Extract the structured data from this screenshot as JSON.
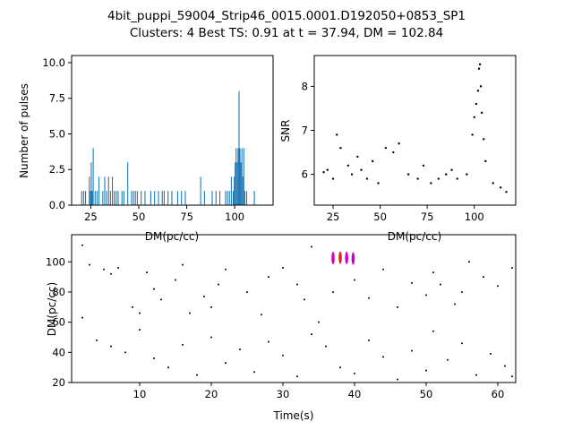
{
  "figure": {
    "title_line1": "4bit_puppi_59004_Strip46_0015.0001.D192050+0853_SP1",
    "title_line2": "Clusters: 4 Best TS: 0.91 at t = 37.94, DM = 102.84"
  },
  "colors": {
    "histogram_bars": "#1f77b4",
    "points": "#000000",
    "cluster_red": "#d62728",
    "cluster_magenta": "#cc00cc"
  },
  "chart_data": [
    {
      "type": "bar",
      "name": "dm-histogram",
      "xlabel": "DM(pc/cc)",
      "ylabel": "Number of pulses",
      "xlim": [
        15,
        120
      ],
      "ylim": [
        0,
        10.5
      ],
      "xticks": [
        "25",
        "50",
        "75",
        "100"
      ],
      "yticks": [
        "0.0",
        "2.5",
        "5.0",
        "7.5",
        "10.0"
      ],
      "bin_width": 0.5,
      "x": [
        20,
        21,
        22,
        24,
        24.5,
        25,
        25.5,
        26,
        27,
        28,
        29,
        31,
        32,
        33,
        34,
        35,
        36,
        37,
        38,
        39,
        41,
        42,
        44,
        46,
        47,
        48,
        49,
        51,
        53,
        56,
        58,
        60,
        62,
        63,
        65,
        67,
        70,
        72,
        74,
        82,
        84,
        88,
        90,
        92,
        95,
        96,
        97,
        98,
        99,
        99.5,
        100,
        100.5,
        101,
        101.5,
        102,
        102.5,
        103,
        103.5,
        104,
        104.5,
        105,
        106,
        110
      ],
      "values": [
        1,
        1,
        1,
        2,
        1,
        3,
        1,
        4,
        1,
        1,
        2,
        1,
        2,
        1,
        2,
        1,
        2,
        1,
        1,
        1,
        1,
        1,
        3,
        1,
        1,
        1,
        1,
        1,
        1,
        1,
        1,
        1,
        1,
        1,
        1,
        1,
        1,
        1,
        1,
        2,
        1,
        1,
        1,
        1,
        1,
        1,
        1,
        2,
        1,
        2,
        3,
        4,
        3,
        4,
        8,
        4,
        3,
        4,
        2,
        4,
        1,
        1,
        1
      ]
    },
    {
      "type": "scatter",
      "name": "snr-vs-dm",
      "xlabel": "DM(pc/cc)",
      "ylabel": "SNR",
      "xlim": [
        15,
        122
      ],
      "ylim": [
        5.3,
        8.7
      ],
      "xticks": [
        "25",
        "50",
        "75",
        "100"
      ],
      "yticks": [
        "6",
        "7",
        "8"
      ],
      "points": [
        [
          20,
          6.05
        ],
        [
          22,
          6.1
        ],
        [
          25,
          5.9
        ],
        [
          27,
          6.9
        ],
        [
          29,
          6.6
        ],
        [
          33,
          6.2
        ],
        [
          35,
          6.0
        ],
        [
          38,
          6.4
        ],
        [
          40,
          6.1
        ],
        [
          43,
          5.9
        ],
        [
          46,
          6.3
        ],
        [
          49,
          5.8
        ],
        [
          53,
          6.6
        ],
        [
          57,
          6.5
        ],
        [
          60,
          6.7
        ],
        [
          65,
          6.0
        ],
        [
          70,
          5.9
        ],
        [
          73,
          6.2
        ],
        [
          77,
          5.8
        ],
        [
          81,
          5.9
        ],
        [
          85,
          6.0
        ],
        [
          88,
          6.1
        ],
        [
          91,
          5.9
        ],
        [
          96,
          6.0
        ],
        [
          99,
          6.9
        ],
        [
          100,
          7.3
        ],
        [
          101,
          7.6
        ],
        [
          102,
          7.9
        ],
        [
          102.5,
          8.4
        ],
        [
          103,
          8.5
        ],
        [
          103.5,
          8.0
        ],
        [
          104,
          7.4
        ],
        [
          105,
          6.8
        ],
        [
          106,
          6.3
        ],
        [
          110,
          5.8
        ],
        [
          114,
          5.7
        ],
        [
          117,
          5.6
        ]
      ]
    },
    {
      "type": "scatter",
      "name": "dm-vs-time",
      "xlabel": "Time(s)",
      "ylabel": "DM(pc/cc)",
      "xlim": [
        0.5,
        62.5
      ],
      "ylim": [
        20,
        118
      ],
      "xticks": [
        "10",
        "20",
        "30",
        "40",
        "50",
        "60"
      ],
      "yticks": [
        "20",
        "40",
        "60",
        "80",
        "100"
      ],
      "clusters": [
        {
          "t": 37.0,
          "dm": 102.5,
          "color": "#cc00cc"
        },
        {
          "t": 38.0,
          "dm": 102.8,
          "color": "#d62728"
        },
        {
          "t": 38.9,
          "dm": 102.6,
          "color": "#cc00cc"
        },
        {
          "t": 39.8,
          "dm": 102.2,
          "color": "#cc00cc"
        }
      ],
      "points": [
        [
          2,
          111
        ],
        [
          3,
          98
        ],
        [
          5,
          95
        ],
        [
          6,
          92
        ],
        [
          7,
          96
        ],
        [
          9,
          70
        ],
        [
          10,
          66
        ],
        [
          11,
          93
        ],
        [
          12,
          82
        ],
        [
          13,
          75
        ],
        [
          15,
          88
        ],
        [
          16,
          98
        ],
        [
          17,
          66
        ],
        [
          19,
          77
        ],
        [
          20,
          70
        ],
        [
          21,
          85
        ],
        [
          22,
          95
        ],
        [
          25,
          80
        ],
        [
          27,
          65
        ],
        [
          28,
          90
        ],
        [
          30,
          96
        ],
        [
          32,
          85
        ],
        [
          33,
          75
        ],
        [
          34,
          110
        ],
        [
          35,
          60
        ],
        [
          37,
          80
        ],
        [
          40,
          88
        ],
        [
          42,
          76
        ],
        [
          44,
          95
        ],
        [
          46,
          70
        ],
        [
          48,
          86
        ],
        [
          50,
          78
        ],
        [
          51,
          93
        ],
        [
          52,
          85
        ],
        [
          54,
          72
        ],
        [
          55,
          80
        ],
        [
          56,
          100
        ],
        [
          58,
          90
        ],
        [
          60,
          84
        ],
        [
          62,
          96
        ],
        [
          2,
          63
        ],
        [
          4,
          48
        ],
        [
          6,
          44
        ],
        [
          8,
          40
        ],
        [
          10,
          55
        ],
        [
          12,
          36
        ],
        [
          14,
          30
        ],
        [
          16,
          45
        ],
        [
          18,
          25
        ],
        [
          20,
          50
        ],
        [
          22,
          33
        ],
        [
          24,
          42
        ],
        [
          26,
          27
        ],
        [
          28,
          47
        ],
        [
          30,
          38
        ],
        [
          32,
          24
        ],
        [
          34,
          52
        ],
        [
          36,
          44
        ],
        [
          38,
          30
        ],
        [
          40,
          26
        ],
        [
          42,
          48
        ],
        [
          44,
          37
        ],
        [
          46,
          22
        ],
        [
          48,
          41
        ],
        [
          50,
          28
        ],
        [
          51,
          54
        ],
        [
          53,
          35
        ],
        [
          55,
          46
        ],
        [
          57,
          25
        ],
        [
          59,
          39
        ],
        [
          61,
          31
        ],
        [
          62,
          24
        ]
      ]
    }
  ]
}
